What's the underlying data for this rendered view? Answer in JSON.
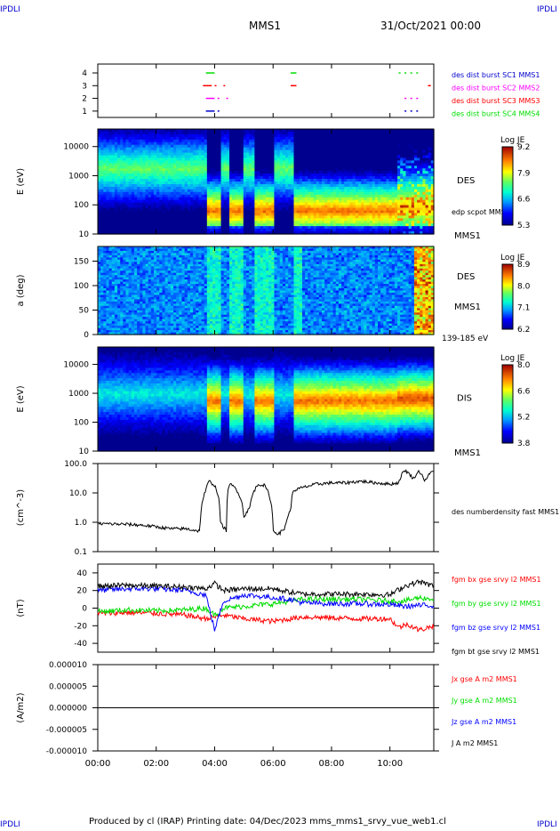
{
  "corners": {
    "tl": "IPDLI",
    "tr": "IPDLI",
    "bl": "IPDLI",
    "br": "IPDLI"
  },
  "header": {
    "spacecraft": "MMS1",
    "date_time": "31/Oct/2021 00:00"
  },
  "footer": {
    "text": "Produced by cl (IRAP)   Printing date: 04/Dec/2023   mms_mms1_srvy_vue_web1.cl"
  },
  "colors": {
    "red": "#ff0000",
    "green": "#00dd00",
    "blue": "#0000ff",
    "magenta": "#ff00ff",
    "dark_blue": "#0000cc",
    "black": "#000000"
  },
  "time_axis": {
    "ticks": [
      "00:00",
      "02:00",
      "04:00",
      "06:00",
      "08:00",
      "10:00"
    ],
    "tick_hours": [
      0,
      2,
      4,
      6,
      8,
      10
    ],
    "range_hours": [
      0,
      11.5
    ]
  },
  "chart_data": [
    {
      "type": "scatter",
      "panel": "burst",
      "y_ticks": [
        "4",
        "3",
        "2",
        "1"
      ],
      "y_values": [
        4,
        3,
        2,
        1
      ],
      "legend": [
        {
          "label": "des dist burst SC1 MMS1",
          "color": "#0000cc"
        },
        {
          "label": "des dist burst SC2 MMS2",
          "color": "#ff00ff"
        },
        {
          "label": "des dist burst SC3 MMS3",
          "color": "#ff0000"
        },
        {
          "label": "des dist burst SC4 MMS4",
          "color": "#00dd00"
        }
      ],
      "segments": [
        {
          "y": 4,
          "color": "#00dd00",
          "x": [
            [
              3.7,
              4.0
            ],
            [
              6.6,
              6.8
            ],
            [
              10.3,
              10.35
            ],
            [
              10.5,
              10.55
            ],
            [
              10.7,
              10.75
            ],
            [
              10.9,
              10.95
            ]
          ]
        },
        {
          "y": 3,
          "color": "#ff0000",
          "x": [
            [
              3.6,
              3.9
            ],
            [
              4.0,
              4.05
            ],
            [
              4.3,
              4.35
            ],
            [
              6.6,
              6.8
            ],
            [
              11.3,
              11.4
            ]
          ]
        },
        {
          "y": 2,
          "color": "#ff00ff",
          "x": [
            [
              3.7,
              4.0
            ],
            [
              4.1,
              4.15
            ],
            [
              4.4,
              4.45
            ],
            [
              10.5,
              10.55
            ],
            [
              10.7,
              10.75
            ],
            [
              10.9,
              10.95
            ]
          ]
        },
        {
          "y": 1,
          "color": "#0000cc",
          "x": [
            [
              3.7,
              4.0
            ],
            [
              4.1,
              4.15
            ],
            [
              10.5,
              10.55
            ],
            [
              10.7,
              10.75
            ],
            [
              10.9,
              10.95
            ]
          ]
        }
      ]
    },
    {
      "type": "heatmap",
      "panel": "des_energy",
      "ylabel": "E (eV)",
      "y_ticks": [
        "10000",
        "1000",
        "100",
        "10"
      ],
      "y_values": [
        10000,
        1000,
        100,
        10
      ],
      "ylim": [
        10,
        40000
      ],
      "scale": "log",
      "label": "DES",
      "sublabel": "edp scpot MMS1",
      "sat_label": "MMS1",
      "colorbar": {
        "title": "Log JE",
        "ticks": [
          "9.2",
          "7.9",
          "6.6",
          "5.3"
        ],
        "range": [
          5.3,
          9.2
        ]
      }
    },
    {
      "type": "heatmap",
      "panel": "des_pitch",
      "ylabel": "a (deg)",
      "y_ticks": [
        "150",
        "100",
        "50",
        "0"
      ],
      "y_values": [
        150,
        100,
        50,
        0
      ],
      "ylim": [
        0,
        180
      ],
      "label": "DES",
      "sat_label": "MMS1",
      "energy_range": "139-185 eV",
      "colorbar": {
        "title": "Log JE",
        "ticks": [
          "8.9",
          "8.0",
          "7.1",
          "6.2"
        ],
        "range": [
          6.2,
          8.9
        ]
      }
    },
    {
      "type": "heatmap",
      "panel": "dis_energy",
      "ylabel": "E (eV)",
      "y_ticks": [
        "10000",
        "1000",
        "100",
        "10"
      ],
      "y_values": [
        10000,
        1000,
        100,
        10
      ],
      "ylim": [
        10,
        40000
      ],
      "scale": "log",
      "label": "DIS",
      "sat_label": "MMS1",
      "colorbar": {
        "title": "Log JE",
        "ticks": [
          "8.0",
          "6.6",
          "5.2",
          "3.8"
        ],
        "range": [
          3.8,
          8.0
        ]
      }
    },
    {
      "type": "line",
      "panel": "density",
      "ylabel": "(cm^-3)",
      "y_ticks": [
        "100.0",
        "10.0",
        "1.0",
        "0.1"
      ],
      "y_values": [
        100,
        10,
        1,
        0.1
      ],
      "ylim": [
        0.1,
        100
      ],
      "scale": "log",
      "series": [
        {
          "name": "des numberdensity fast MMS1",
          "color": "#000000",
          "x": [
            0,
            1.0,
            1.5,
            2.0,
            2.5,
            3.0,
            3.5,
            3.7,
            3.8,
            4.0,
            4.2,
            4.4,
            4.5,
            4.7,
            5.0,
            5.2,
            5.5,
            5.7,
            6.0,
            6.2,
            6.4,
            6.6,
            6.7,
            7.0,
            7.5,
            8.0,
            8.5,
            9.0,
            9.5,
            10.0,
            10.3,
            10.5,
            10.8,
            11.0,
            11.2,
            11.5
          ],
          "y": [
            0.9,
            0.85,
            0.8,
            0.7,
            0.6,
            0.6,
            0.5,
            12,
            25,
            18,
            0.9,
            0.5,
            20,
            15,
            1.5,
            3,
            20,
            18,
            0.5,
            0.4,
            0.6,
            2.5,
            12,
            15,
            20,
            22,
            22,
            25,
            22,
            20,
            22,
            60,
            30,
            55,
            25,
            60
          ]
        }
      ]
    },
    {
      "type": "line",
      "panel": "magnetic_field",
      "ylabel": "(nT)",
      "y_ticks": [
        "40",
        "20",
        "0",
        "-20",
        "-40"
      ],
      "y_values": [
        40,
        20,
        0,
        -20,
        -40
      ],
      "ylim": [
        -50,
        50
      ],
      "series": [
        {
          "name": "fgm bx gse srvy l2 MMS1",
          "color": "#ff0000",
          "x": [
            0,
            1,
            2,
            3,
            3.7,
            4.0,
            4.3,
            5,
            6,
            6.6,
            7,
            8,
            9,
            10,
            10.3,
            10.6,
            11,
            11.5
          ],
          "y": [
            -6,
            -5,
            -6,
            -8,
            -12,
            -10,
            -8,
            -12,
            -15,
            -12,
            -10,
            -11,
            -12,
            -12,
            -22,
            -18,
            -25,
            -20
          ]
        },
        {
          "name": "fgm by gse srvy l2 MMS1",
          "color": "#00dd00",
          "x": [
            0,
            1,
            2,
            3,
            3.7,
            4.0,
            4.3,
            5,
            6,
            6.6,
            7,
            8,
            9,
            10,
            10.5,
            11,
            11.5
          ],
          "y": [
            -4,
            -2,
            -3,
            -2,
            0,
            -8,
            0,
            2,
            5,
            8,
            10,
            10,
            10,
            8,
            8,
            12,
            10
          ]
        },
        {
          "name": "fgm bz gse srvy l2 MMS1",
          "color": "#0000ff",
          "x": [
            0,
            1,
            2,
            3,
            3.7,
            4.0,
            4.3,
            5,
            6,
            6.6,
            7,
            8,
            9,
            10,
            10.5,
            11,
            11.5
          ],
          "y": [
            20,
            22,
            22,
            20,
            15,
            -25,
            8,
            15,
            12,
            10,
            6,
            5,
            5,
            4,
            2,
            3,
            3
          ]
        },
        {
          "name": "fgm bt gse srvy l2 MMS1",
          "color": "#000000",
          "x": [
            0,
            1,
            2,
            3,
            3.7,
            4.0,
            4.3,
            5,
            6,
            6.6,
            7,
            8,
            9,
            10,
            10.5,
            11,
            11.5
          ],
          "y": [
            25,
            26,
            25,
            24,
            22,
            28,
            20,
            22,
            22,
            18,
            16,
            16,
            16,
            15,
            25,
            30,
            25
          ]
        }
      ]
    },
    {
      "type": "line",
      "panel": "current_density",
      "ylabel": "(A/m2)",
      "y_ticks": [
        "0.000010",
        "0.000005",
        "0.000000",
        "-0.000005",
        "-0.000010"
      ],
      "y_values": [
        1e-05,
        5e-06,
        0,
        -5e-06,
        -1e-05
      ],
      "ylim": [
        -1e-05,
        1e-05
      ],
      "series": [
        {
          "name": "Jx gse A m2 MMS1",
          "color": "#ff0000",
          "x": [
            0,
            11.5
          ],
          "y": [
            0,
            0
          ]
        },
        {
          "name": "Jy gse A m2 MMS1",
          "color": "#00dd00",
          "x": [
            0,
            11.5
          ],
          "y": [
            0,
            0
          ]
        },
        {
          "name": "Jz gse A m2 MMS1",
          "color": "#0000ff",
          "x": [
            0,
            11.5
          ],
          "y": [
            0,
            0
          ]
        },
        {
          "name": "J A m2 MMS1",
          "color": "#000000",
          "x": [
            0,
            11.5
          ],
          "y": [
            0,
            0
          ]
        }
      ]
    }
  ]
}
